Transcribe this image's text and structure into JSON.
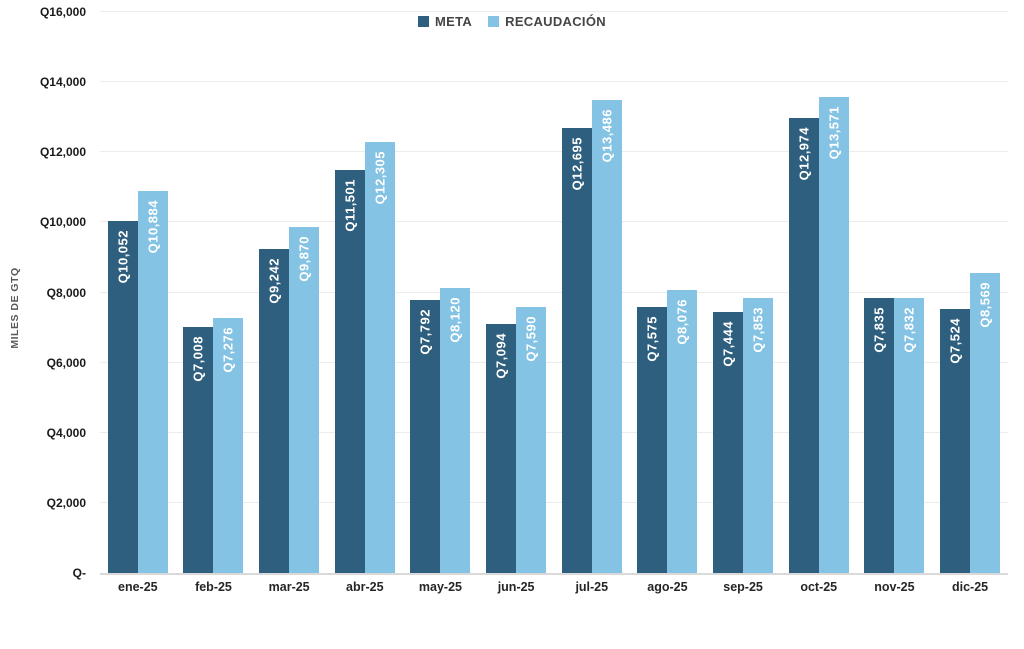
{
  "chart_data": {
    "type": "bar",
    "title": "",
    "ylabel": "MILES DE GTQ",
    "xlabel": "",
    "ylim": [
      0,
      16000
    ],
    "ytick_step": 2000,
    "grid": true,
    "legend_position": "top-center",
    "yticks": [
      "Q-",
      "Q2,000",
      "Q4,000",
      "Q6,000",
      "Q8,000",
      "Q10,000",
      "Q12,000",
      "Q14,000",
      "Q16,000"
    ],
    "categories": [
      "ene-25",
      "feb-25",
      "mar-25",
      "abr-25",
      "may-25",
      "jun-25",
      "jul-25",
      "ago-25",
      "sep-25",
      "oct-25",
      "nov-25",
      "dic-25"
    ],
    "series": [
      {
        "id": "meta",
        "name": "META",
        "color": "#2F5F7E",
        "values": [
          10052,
          7008,
          9242,
          11501,
          7792,
          7094,
          12695,
          7575,
          7444,
          12974,
          7835,
          7524
        ],
        "labels": [
          "Q10,052",
          "Q7,008",
          "Q9,242",
          "Q11,501",
          "Q7,792",
          "Q7,094",
          "Q12,695",
          "Q7,575",
          "Q7,444",
          "Q12,974",
          "Q7,835",
          "Q7,524"
        ]
      },
      {
        "id": "recaudacion",
        "name": "RECAUDACIÓN",
        "color": "#85C3E4",
        "values": [
          10884,
          7276,
          9870,
          12305,
          8120,
          7590,
          13486,
          8076,
          7853,
          13571,
          7832,
          8569
        ],
        "labels": [
          "Q10,884",
          "Q7,276",
          "Q9,870",
          "Q12,305",
          "Q8,120",
          "Q7,590",
          "Q13,486",
          "Q8,076",
          "Q7,853",
          "Q13,571",
          "Q7,832",
          "Q8,569"
        ]
      }
    ],
    "colors": {
      "grid": "#ececec",
      "axis_line": "#d9d9d9",
      "tick_text": "#1a1a1a",
      "bar_label_text": "#ffffff"
    }
  }
}
